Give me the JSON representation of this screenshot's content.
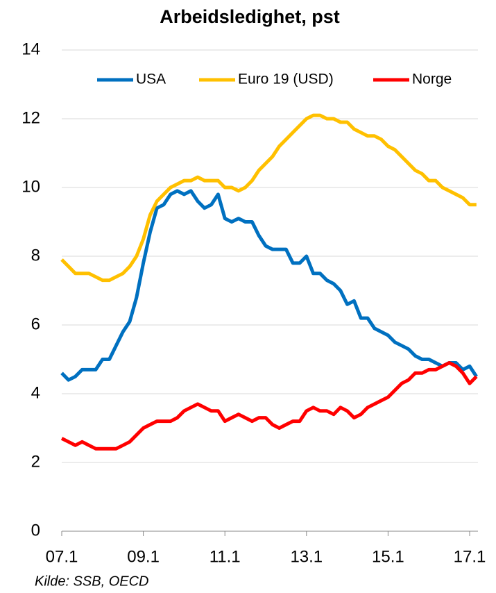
{
  "chart_data": {
    "type": "line",
    "title": "Arbeidsledighet, pst",
    "source": "Kilde: SSB, OECD",
    "categories": [
      "07.1",
      null,
      null,
      null,
      null,
      null,
      null,
      null,
      null,
      null,
      null,
      null,
      "09.1",
      null,
      null,
      null,
      null,
      null,
      null,
      null,
      null,
      null,
      null,
      null,
      "11.1",
      null,
      null,
      null,
      null,
      null,
      null,
      null,
      null,
      null,
      null,
      null,
      "13.1",
      null,
      null,
      null,
      null,
      null,
      null,
      null,
      null,
      null,
      null,
      null,
      "15.1",
      null,
      null,
      null,
      null,
      null,
      null,
      null,
      null,
      null,
      null,
      null,
      "17.1",
      null
    ],
    "series": [
      {
        "name": "USA",
        "color": "#0070c0",
        "values": [
          4.6,
          4.4,
          4.5,
          4.7,
          4.7,
          4.7,
          5.0,
          5.0,
          5.4,
          5.8,
          6.1,
          6.8,
          7.8,
          8.7,
          9.4,
          9.5,
          9.8,
          9.9,
          9.8,
          9.9,
          9.6,
          9.4,
          9.5,
          9.8,
          9.1,
          9.0,
          9.1,
          9.0,
          9.0,
          8.6,
          8.3,
          8.2,
          8.2,
          8.2,
          7.8,
          7.8,
          8.0,
          7.5,
          7.5,
          7.3,
          7.2,
          7.0,
          6.6,
          6.7,
          6.2,
          6.2,
          5.9,
          5.8,
          5.7,
          5.5,
          5.4,
          5.3,
          5.1,
          5.0,
          5.0,
          4.9,
          4.8,
          4.9,
          4.9,
          4.7,
          4.8,
          4.5
        ]
      },
      {
        "name": "Euro 19 (USD)",
        "color": "#ffc000",
        "values": [
          7.9,
          7.7,
          7.5,
          7.5,
          7.5,
          7.4,
          7.3,
          7.3,
          7.4,
          7.5,
          7.7,
          8.0,
          8.5,
          9.2,
          9.6,
          9.8,
          10.0,
          10.1,
          10.2,
          10.2,
          10.3,
          10.2,
          10.2,
          10.2,
          10.0,
          10.0,
          9.9,
          10.0,
          10.2,
          10.5,
          10.7,
          10.9,
          11.2,
          11.4,
          11.6,
          11.8,
          12.0,
          12.1,
          12.1,
          12.0,
          12.0,
          11.9,
          11.9,
          11.7,
          11.6,
          11.5,
          11.5,
          11.4,
          11.2,
          11.1,
          10.9,
          10.7,
          10.5,
          10.4,
          10.2,
          10.2,
          10.0,
          9.9,
          9.8,
          9.7,
          9.5,
          9.5
        ]
      },
      {
        "name": "Norge",
        "color": "#ff0000",
        "values": [
          2.7,
          2.6,
          2.5,
          2.6,
          2.5,
          2.4,
          2.4,
          2.4,
          2.4,
          2.5,
          2.6,
          2.8,
          3.0,
          3.1,
          3.2,
          3.2,
          3.2,
          3.3,
          3.5,
          3.6,
          3.7,
          3.6,
          3.5,
          3.5,
          3.2,
          3.3,
          3.4,
          3.3,
          3.2,
          3.3,
          3.3,
          3.1,
          3.0,
          3.1,
          3.2,
          3.2,
          3.5,
          3.6,
          3.5,
          3.5,
          3.4,
          3.6,
          3.5,
          3.3,
          3.4,
          3.6,
          3.7,
          3.8,
          3.9,
          4.1,
          4.3,
          4.4,
          4.6,
          4.6,
          4.7,
          4.7,
          4.8,
          4.9,
          4.8,
          4.6,
          4.3,
          4.5
        ]
      }
    ],
    "ylim": [
      0,
      14
    ],
    "yticks": [
      0,
      2,
      4,
      6,
      8,
      10,
      12,
      14
    ],
    "grid": true,
    "legend": "top"
  }
}
